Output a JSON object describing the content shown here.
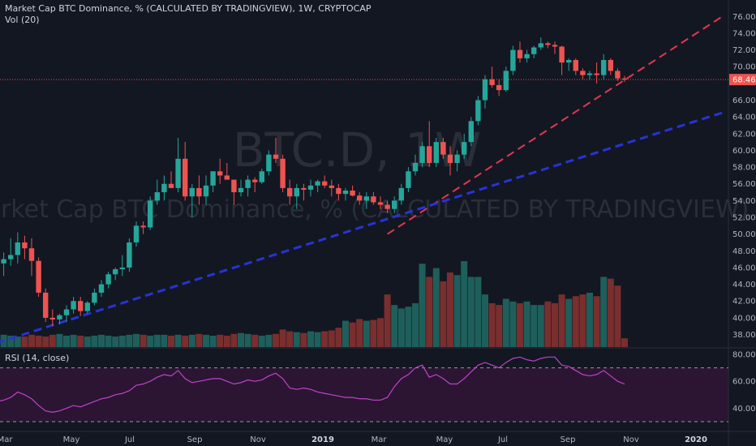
{
  "header": {
    "title": "Market Cap BTC Dominance, % (CALCULATED BY TRADINGVIEW), 1W, CRYPTOCAP",
    "vol_label": "Vol (20)",
    "rsi_label": "RSI (14, close)"
  },
  "watermark": {
    "symbol": "BTC.D, 1W",
    "description": "Market Cap BTC Dominance, % (CALCULATED BY TRADINGVIEW)"
  },
  "colors": {
    "background": "#131722",
    "up": "#26a69a",
    "down": "#ef5350",
    "vol_up": "#1e5f5b",
    "vol_down": "#7a2e2e",
    "trend_red": "#e5364f",
    "trend_blue": "#2733d6",
    "rsi_line": "#c042c8",
    "rsi_band": "#2b1533",
    "price_line": "#ef5350"
  },
  "price_axis": {
    "ticks": [
      "76.00",
      "74.00",
      "72.00",
      "70.00",
      "68.46",
      "66.00",
      "64.00",
      "62.00",
      "60.00",
      "58.00",
      "56.00",
      "54.00",
      "52.00",
      "50.00",
      "48.00",
      "46.00",
      "44.00",
      "42.00",
      "40.00",
      "38.00"
    ],
    "current_price": "68.46"
  },
  "rsi_axis": {
    "ticks": [
      "80.00",
      "60.00",
      "40.00"
    ],
    "upper_band": 70,
    "lower_band": 30
  },
  "time_axis": {
    "labels": [
      "Mar",
      "May",
      "Jul",
      "Sep",
      "Nov",
      "2019",
      "Mar",
      "May",
      "Jul",
      "Sep",
      "Nov",
      "2020"
    ],
    "bold": [
      false,
      false,
      false,
      false,
      false,
      true,
      false,
      false,
      false,
      false,
      false,
      true
    ]
  },
  "chart_data": {
    "type": "candlestick",
    "title": "Market Cap BTC Dominance, % (CALCULATED BY TRADINGVIEW), 1W, CRYPTOCAP",
    "y_range": [
      36.5,
      77
    ],
    "last_price": 68.46,
    "candles": [
      {
        "o": 45.0,
        "h": 47.0,
        "l": 41.5,
        "c": 46.5
      },
      {
        "o": 46.5,
        "h": 47.8,
        "l": 45.0,
        "c": 47.0
      },
      {
        "o": 47.0,
        "h": 49.5,
        "l": 46.2,
        "c": 47.5
      },
      {
        "o": 47.5,
        "h": 50.2,
        "l": 46.5,
        "c": 49.0
      },
      {
        "o": 49.0,
        "h": 49.8,
        "l": 47.0,
        "c": 48.3
      },
      {
        "o": 48.3,
        "h": 49.5,
        "l": 45.0,
        "c": 46.8
      },
      {
        "o": 46.8,
        "h": 47.2,
        "l": 42.5,
        "c": 43.0
      },
      {
        "o": 43.0,
        "h": 43.5,
        "l": 39.5,
        "c": 40.0
      },
      {
        "o": 40.0,
        "h": 41.0,
        "l": 39.0,
        "c": 39.8
      },
      {
        "o": 39.8,
        "h": 40.5,
        "l": 39.2,
        "c": 40.3
      },
      {
        "o": 40.3,
        "h": 41.5,
        "l": 39.5,
        "c": 41.0
      },
      {
        "o": 41.0,
        "h": 42.5,
        "l": 40.5,
        "c": 42.0
      },
      {
        "o": 42.0,
        "h": 42.5,
        "l": 40.2,
        "c": 40.8
      },
      {
        "o": 40.8,
        "h": 42.0,
        "l": 40.5,
        "c": 41.8
      },
      {
        "o": 41.8,
        "h": 43.5,
        "l": 41.5,
        "c": 43.0
      },
      {
        "o": 43.0,
        "h": 44.5,
        "l": 42.5,
        "c": 44.0
      },
      {
        "o": 44.0,
        "h": 45.5,
        "l": 43.5,
        "c": 45.2
      },
      {
        "o": 45.2,
        "h": 46.0,
        "l": 44.5,
        "c": 45.8
      },
      {
        "o": 45.8,
        "h": 47.5,
        "l": 45.0,
        "c": 46.0
      },
      {
        "o": 46.0,
        "h": 49.5,
        "l": 45.5,
        "c": 49.0
      },
      {
        "o": 49.0,
        "h": 51.5,
        "l": 48.5,
        "c": 51.0
      },
      {
        "o": 51.0,
        "h": 51.5,
        "l": 50.0,
        "c": 50.8
      },
      {
        "o": 50.8,
        "h": 54.5,
        "l": 50.5,
        "c": 54.0
      },
      {
        "o": 54.0,
        "h": 56.5,
        "l": 53.5,
        "c": 55.0
      },
      {
        "o": 55.0,
        "h": 57.0,
        "l": 54.0,
        "c": 56.0
      },
      {
        "o": 56.0,
        "h": 57.5,
        "l": 55.5,
        "c": 55.5
      },
      {
        "o": 55.5,
        "h": 61.5,
        "l": 55.0,
        "c": 59.0
      },
      {
        "o": 59.0,
        "h": 61.0,
        "l": 54.0,
        "c": 54.5
      },
      {
        "o": 54.5,
        "h": 56.0,
        "l": 52.0,
        "c": 55.5
      },
      {
        "o": 55.5,
        "h": 57.0,
        "l": 53.5,
        "c": 54.5
      },
      {
        "o": 54.5,
        "h": 57.0,
        "l": 53.5,
        "c": 55.8
      },
      {
        "o": 55.8,
        "h": 57.5,
        "l": 55.0,
        "c": 57.5
      },
      {
        "o": 57.5,
        "h": 59.0,
        "l": 56.0,
        "c": 57.0
      },
      {
        "o": 57.0,
        "h": 58.5,
        "l": 56.5,
        "c": 56.5
      },
      {
        "o": 56.5,
        "h": 56.5,
        "l": 53.5,
        "c": 55.0
      },
      {
        "o": 55.0,
        "h": 56.5,
        "l": 54.5,
        "c": 55.5
      },
      {
        "o": 55.5,
        "h": 57.0,
        "l": 54.5,
        "c": 56.5
      },
      {
        "o": 56.5,
        "h": 56.8,
        "l": 55.0,
        "c": 56.2
      },
      {
        "o": 56.2,
        "h": 57.8,
        "l": 56.0,
        "c": 57.5
      },
      {
        "o": 57.5,
        "h": 60.0,
        "l": 57.0,
        "c": 59.5
      },
      {
        "o": 59.5,
        "h": 61.5,
        "l": 58.5,
        "c": 59.0
      },
      {
        "o": 59.0,
        "h": 59.5,
        "l": 55.0,
        "c": 55.5
      },
      {
        "o": 55.5,
        "h": 56.5,
        "l": 53.5,
        "c": 54.5
      },
      {
        "o": 54.5,
        "h": 56.0,
        "l": 53.0,
        "c": 55.5
      },
      {
        "o": 55.5,
        "h": 56.0,
        "l": 54.0,
        "c": 55.3
      },
      {
        "o": 55.3,
        "h": 56.5,
        "l": 54.5,
        "c": 55.8
      },
      {
        "o": 55.8,
        "h": 56.5,
        "l": 55.0,
        "c": 56.3
      },
      {
        "o": 56.3,
        "h": 57.0,
        "l": 55.5,
        "c": 55.8
      },
      {
        "o": 55.8,
        "h": 56.5,
        "l": 54.5,
        "c": 55.5
      },
      {
        "o": 55.5,
        "h": 56.0,
        "l": 54.0,
        "c": 54.8
      },
      {
        "o": 54.8,
        "h": 55.5,
        "l": 54.0,
        "c": 55.2
      },
      {
        "o": 55.2,
        "h": 55.8,
        "l": 54.5,
        "c": 54.6
      },
      {
        "o": 54.6,
        "h": 55.0,
        "l": 53.5,
        "c": 54.0
      },
      {
        "o": 54.0,
        "h": 55.0,
        "l": 53.0,
        "c": 54.5
      },
      {
        "o": 54.5,
        "h": 55.0,
        "l": 53.5,
        "c": 53.8
      },
      {
        "o": 53.8,
        "h": 54.5,
        "l": 53.0,
        "c": 53.5
      },
      {
        "o": 53.5,
        "h": 54.0,
        "l": 52.5,
        "c": 53.0
      },
      {
        "o": 53.0,
        "h": 54.5,
        "l": 52.5,
        "c": 54.0
      },
      {
        "o": 54.0,
        "h": 56.0,
        "l": 53.5,
        "c": 55.5
      },
      {
        "o": 55.5,
        "h": 58.0,
        "l": 55.0,
        "c": 57.5
      },
      {
        "o": 57.5,
        "h": 59.5,
        "l": 57.0,
        "c": 58.5
      },
      {
        "o": 58.5,
        "h": 61.0,
        "l": 58.0,
        "c": 60.5
      },
      {
        "o": 60.5,
        "h": 63.5,
        "l": 58.0,
        "c": 58.5
      },
      {
        "o": 58.5,
        "h": 61.5,
        "l": 58.0,
        "c": 61.0
      },
      {
        "o": 61.0,
        "h": 61.5,
        "l": 59.0,
        "c": 59.5
      },
      {
        "o": 59.5,
        "h": 60.5,
        "l": 57.0,
        "c": 58.5
      },
      {
        "o": 58.5,
        "h": 60.0,
        "l": 57.5,
        "c": 59.5
      },
      {
        "o": 59.5,
        "h": 62.0,
        "l": 59.0,
        "c": 61.0
      },
      {
        "o": 61.0,
        "h": 64.0,
        "l": 60.5,
        "c": 63.5
      },
      {
        "o": 63.5,
        "h": 66.5,
        "l": 63.0,
        "c": 66.0
      },
      {
        "o": 66.0,
        "h": 69.0,
        "l": 65.0,
        "c": 68.5
      },
      {
        "o": 68.5,
        "h": 70.0,
        "l": 67.5,
        "c": 67.8
      },
      {
        "o": 67.8,
        "h": 68.5,
        "l": 66.5,
        "c": 67.2
      },
      {
        "o": 67.2,
        "h": 70.0,
        "l": 67.0,
        "c": 69.5
      },
      {
        "o": 69.5,
        "h": 72.5,
        "l": 69.0,
        "c": 72.0
      },
      {
        "o": 72.0,
        "h": 73.0,
        "l": 70.5,
        "c": 71.0
      },
      {
        "o": 71.0,
        "h": 72.0,
        "l": 70.5,
        "c": 71.5
      },
      {
        "o": 71.5,
        "h": 72.5,
        "l": 71.0,
        "c": 72.3
      },
      {
        "o": 72.3,
        "h": 73.5,
        "l": 72.0,
        "c": 72.8
      },
      {
        "o": 72.8,
        "h": 73.0,
        "l": 72.2,
        "c": 72.6
      },
      {
        "o": 72.6,
        "h": 73.0,
        "l": 71.5,
        "c": 72.4
      },
      {
        "o": 72.4,
        "h": 72.5,
        "l": 69.0,
        "c": 70.5
      },
      {
        "o": 70.5,
        "h": 71.0,
        "l": 69.5,
        "c": 70.8
      },
      {
        "o": 70.8,
        "h": 71.0,
        "l": 69.0,
        "c": 69.5
      },
      {
        "o": 69.5,
        "h": 69.8,
        "l": 68.5,
        "c": 69.0
      },
      {
        "o": 69.0,
        "h": 69.5,
        "l": 68.5,
        "c": 69.2
      },
      {
        "o": 69.2,
        "h": 70.5,
        "l": 68.0,
        "c": 69.0
      },
      {
        "o": 69.0,
        "h": 71.5,
        "l": 68.5,
        "c": 70.8
      },
      {
        "o": 70.8,
        "h": 71.0,
        "l": 69.0,
        "c": 69.5
      },
      {
        "o": 69.5,
        "h": 69.8,
        "l": 68.3,
        "c": 68.6
      },
      {
        "o": 68.6,
        "h": 68.9,
        "l": 68.2,
        "c": 68.46
      }
    ],
    "volume": [
      16,
      14,
      13,
      12,
      12,
      14,
      13,
      12,
      14,
      15,
      13,
      14,
      13,
      12,
      13,
      14,
      13,
      12,
      13,
      14,
      15,
      14,
      13,
      14,
      14,
      13,
      14,
      13,
      14,
      15,
      14,
      13,
      14,
      13,
      15,
      16,
      15,
      14,
      13,
      14,
      15,
      20,
      18,
      17,
      16,
      18,
      17,
      18,
      19,
      22,
      30,
      28,
      32,
      30,
      31,
      33,
      60,
      48,
      44,
      46,
      50,
      95,
      80,
      90,
      75,
      85,
      82,
      98,
      80,
      80,
      60,
      50,
      48,
      55,
      52,
      50,
      52,
      48,
      48,
      52,
      50,
      60,
      55,
      58,
      60,
      62,
      58,
      80,
      78,
      70,
      10
    ],
    "rsi": [
      45,
      46,
      48,
      52,
      50,
      47,
      42,
      38,
      37,
      38,
      40,
      42,
      41,
      43,
      45,
      47,
      48,
      50,
      51,
      53,
      57,
      58,
      60,
      63,
      65,
      64,
      68,
      62,
      59,
      60,
      61,
      62,
      62,
      60,
      58,
      59,
      61,
      60,
      61,
      64,
      66,
      62,
      55,
      54,
      55,
      54,
      52,
      51,
      50,
      49,
      48,
      48,
      47,
      47,
      46,
      46,
      48,
      56,
      62,
      65,
      70,
      72,
      63,
      65,
      62,
      58,
      58,
      62,
      67,
      72,
      74,
      72,
      70,
      74,
      77,
      78,
      76,
      75,
      77,
      78,
      78,
      72,
      71,
      68,
      65,
      64,
      65,
      68,
      64,
      60,
      58
    ],
    "trendlines": [
      {
        "color": "red",
        "from": [
          56,
          50.0
        ],
        "to": [
          104,
          76.0
        ]
      },
      {
        "color": "blue",
        "from": [
          0,
          37.0
        ],
        "to": [
          104,
          64.5
        ]
      }
    ]
  }
}
